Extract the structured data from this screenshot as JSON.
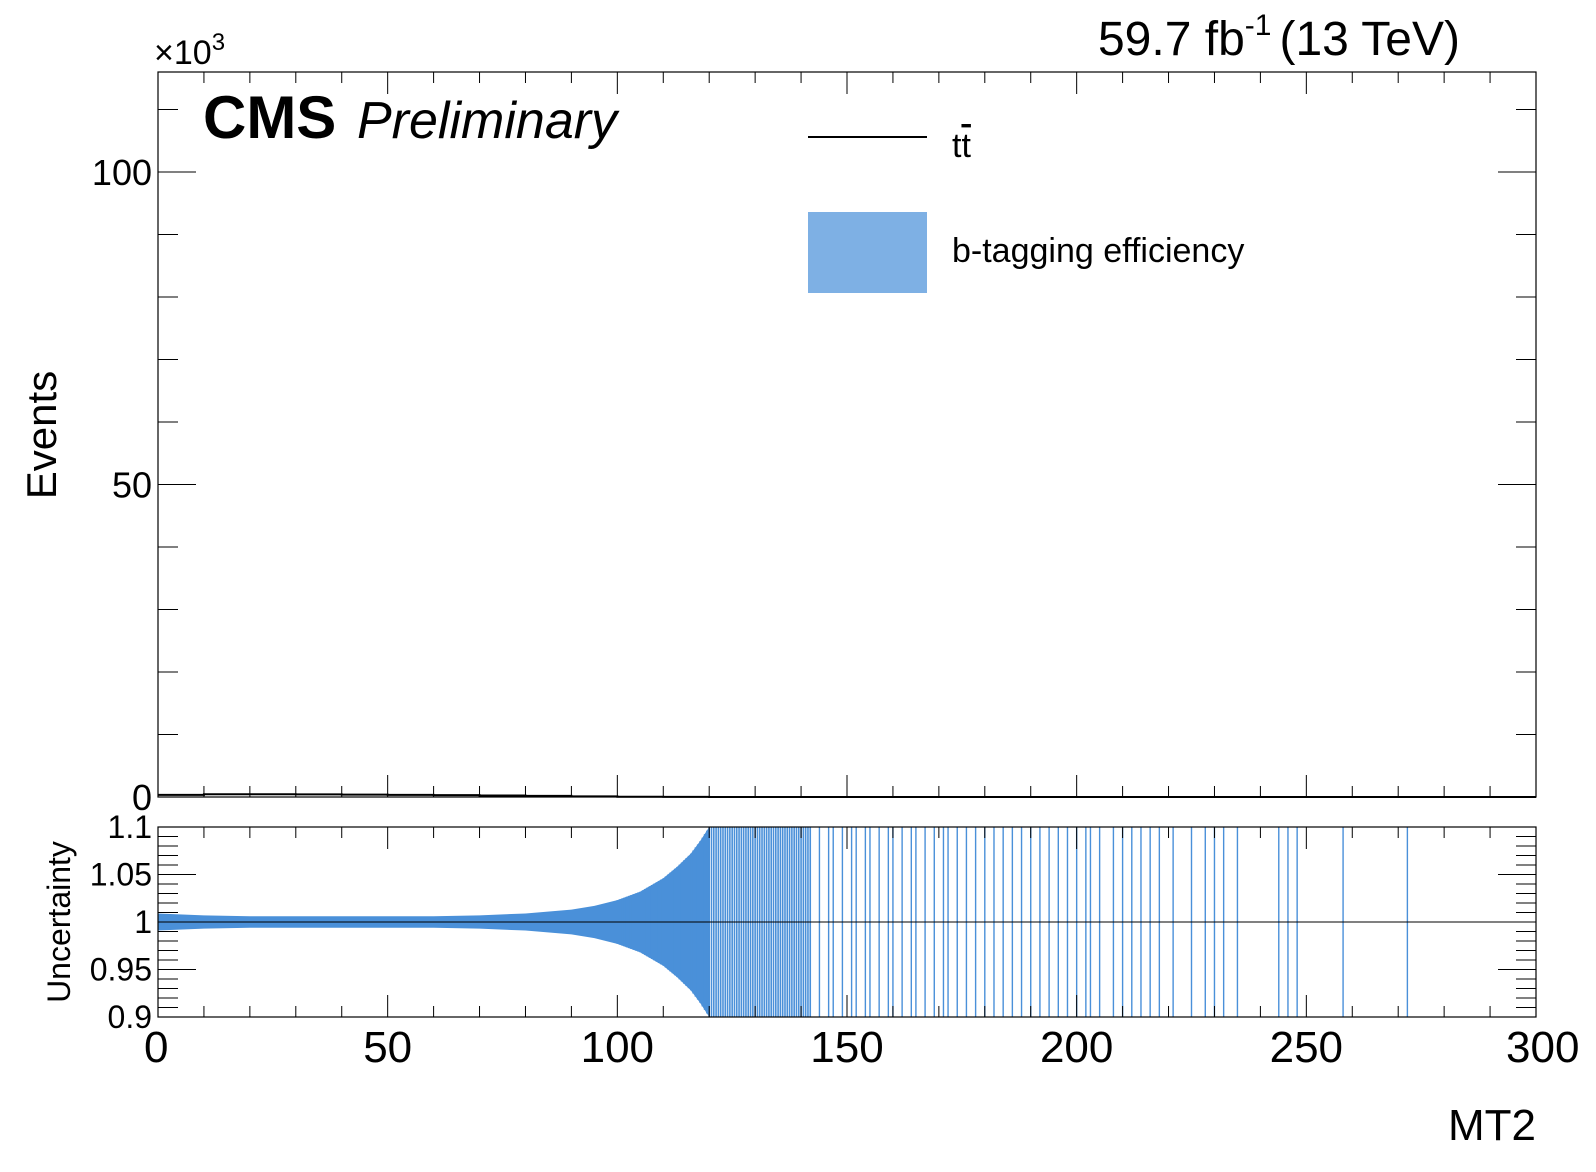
{
  "header": {
    "cms": "CMS",
    "preliminary": "Preliminary",
    "lumi_value": "59.7 fb",
    "lumi_exp": "-1",
    "lumi_energy": "(13 TeV)"
  },
  "colors": {
    "band": "#4a90d9",
    "band_legend": "#7eb0e4",
    "line": "#000000"
  },
  "chart_data": [
    {
      "type": "line",
      "panel": "main",
      "xlabel": "MT2",
      "ylabel": "Events",
      "y_multiplier": "×10",
      "y_multiplier_exp": "3",
      "xlim": [
        0,
        300
      ],
      "ylim": [
        0,
        116
      ],
      "yticks": [
        0,
        50,
        100
      ],
      "ytick_labels": [
        "0",
        "50",
        "100"
      ],
      "legend_position": "top-center",
      "legend": [
        {
          "label": "t",
          "label_bar": "t",
          "kind": "line"
        },
        {
          "label": "b-tagging efficiency",
          "kind": "fill"
        }
      ],
      "series": [
        {
          "name": "tt̄",
          "x": [
            0,
            10,
            20,
            30,
            40,
            50,
            60,
            70,
            80,
            90,
            100,
            110,
            120,
            150,
            200,
            300
          ],
          "y": [
            0.35,
            0.45,
            0.45,
            0.42,
            0.38,
            0.35,
            0.3,
            0.25,
            0.18,
            0.1,
            0.05,
            0.02,
            0.01,
            0.005,
            0.002,
            0
          ]
        }
      ]
    },
    {
      "type": "area",
      "panel": "ratio",
      "xlabel": "MT2",
      "ylabel": "Uncertainty",
      "xlim": [
        0,
        300
      ],
      "ylim": [
        0.9,
        1.1
      ],
      "yticks": [
        0.9,
        0.95,
        1,
        1.05,
        1.1
      ],
      "ytick_labels": [
        "0.9",
        "0.95",
        "1",
        "1.05",
        "1.1"
      ],
      "xticks": [
        0,
        50,
        100,
        150,
        200,
        250,
        300
      ],
      "xtick_labels": [
        "0",
        "50",
        "100",
        "150",
        "200",
        "250",
        "300"
      ],
      "series": [
        {
          "name": "b-tagging efficiency",
          "x": [
            0,
            10,
            20,
            30,
            40,
            50,
            60,
            70,
            80,
            90,
            95,
            100,
            105,
            110,
            113,
            116,
            118,
            120
          ],
          "half_width": [
            0.009,
            0.007,
            0.006,
            0.006,
            0.006,
            0.006,
            0.006,
            0.007,
            0.009,
            0.013,
            0.017,
            0.023,
            0.032,
            0.046,
            0.058,
            0.072,
            0.085,
            0.1
          ]
        }
      ],
      "sparse_full_band_x": [
        142,
        144,
        146,
        147,
        149,
        151,
        152,
        154,
        155,
        157,
        159,
        160,
        162,
        164,
        165,
        167,
        169,
        171,
        172,
        174,
        176,
        178,
        180,
        182,
        184,
        186,
        188,
        190,
        192,
        194,
        196,
        198,
        200,
        202,
        203,
        205,
        208,
        210,
        212,
        214,
        216,
        218,
        221,
        225,
        228,
        230,
        232,
        235,
        244,
        246,
        248,
        258,
        272
      ]
    }
  ]
}
